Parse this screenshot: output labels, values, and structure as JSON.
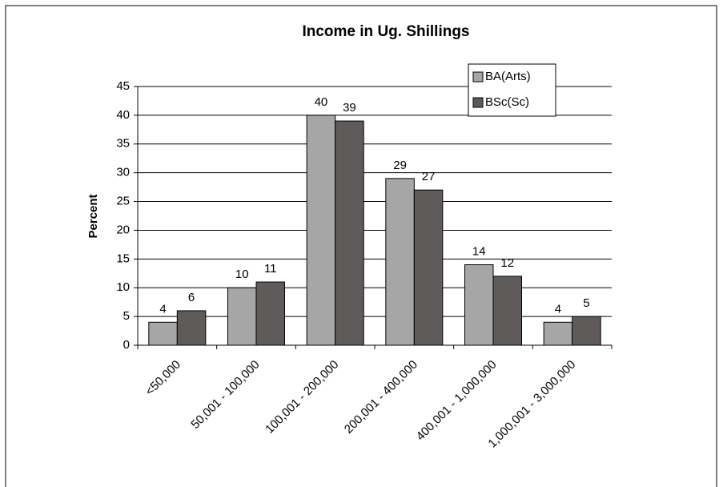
{
  "chart_data": {
    "type": "bar",
    "title": "Income in Ug. Shillings",
    "y_label": "Percent",
    "categories": [
      "<50,000",
      "50,001 - 100,000",
      "100,001 - 200,000",
      "200,001 - 400,000",
      "400,001 - 1,000,000",
      "1,000,001 - 3,000,000"
    ],
    "series": [
      {
        "name": "BA(Arts)",
        "color": "#a6a6a6",
        "values": [
          4,
          10,
          40,
          29,
          14,
          4
        ]
      },
      {
        "name": "BSc(Sc)",
        "color": "#5f5b5b",
        "values": [
          6,
          11,
          39,
          27,
          12,
          5
        ]
      }
    ],
    "ylim": [
      0,
      45
    ],
    "yticks": [
      0,
      5,
      10,
      15,
      20,
      25,
      30,
      35,
      40,
      45
    ],
    "grid": true,
    "legend": "top-right"
  }
}
